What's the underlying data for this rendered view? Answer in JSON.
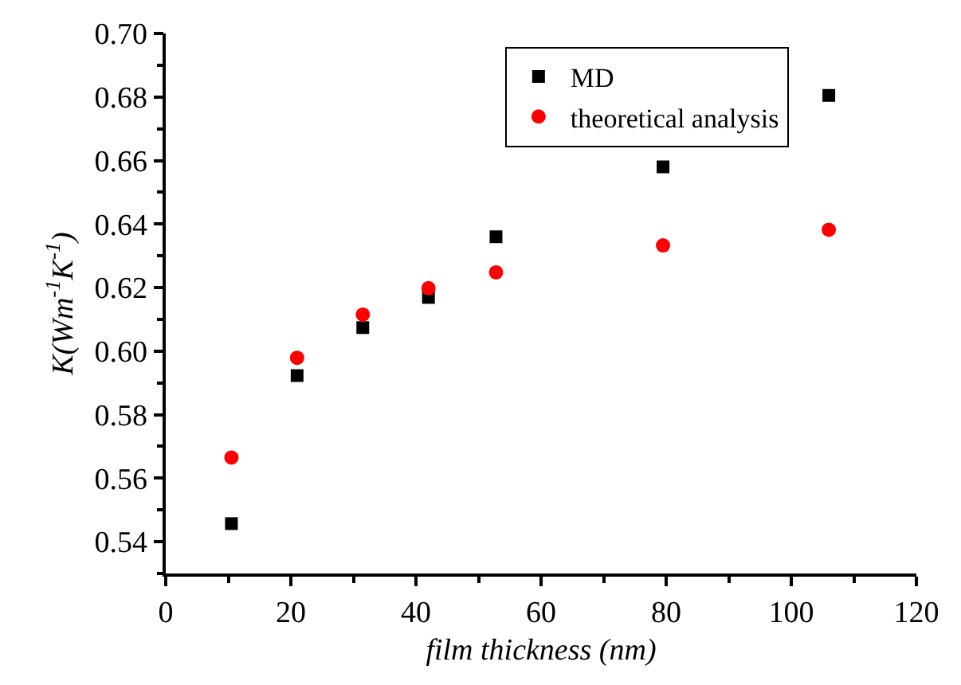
{
  "chart_data": {
    "type": "scatter",
    "xlabel": "film thickness (nm)",
    "ylabel": "K(Wm$^{-1}$K$^{-1}$)",
    "x": [
      10.5,
      21,
      31.5,
      42,
      52.8,
      79.5,
      106
    ],
    "series": [
      {
        "name": "MD",
        "color": "#000000",
        "marker": "square",
        "values": [
          0.5457,
          0.5923,
          0.6074,
          0.6169,
          0.636,
          0.658,
          0.6805
        ]
      },
      {
        "name": "theoretical analysis",
        "color": "#ff0000",
        "marker": "circle",
        "values": [
          0.5665,
          0.5979,
          0.6115,
          0.6198,
          0.6248,
          0.6333,
          0.6382
        ]
      }
    ],
    "xlim": [
      0,
      120
    ],
    "xticks": [
      0,
      20,
      40,
      60,
      80,
      100,
      120
    ],
    "ylim": [
      0.53,
      0.7
    ],
    "yticks": [
      {
        "value": 0.54,
        "label": "0.54"
      },
      {
        "value": 0.56,
        "label": "0.56"
      },
      {
        "value": 0.58,
        "label": "0.58"
      },
      {
        "value": 0.6,
        "label": "0.60"
      },
      {
        "value": 0.62,
        "label": "0.62"
      },
      {
        "value": 0.64,
        "label": "0.64"
      },
      {
        "value": 0.66,
        "label": "0.66"
      },
      {
        "value": 0.68,
        "label": "0.68"
      },
      {
        "value": 0.7,
        "label": "0.70"
      }
    ],
    "legend": "top right"
  }
}
